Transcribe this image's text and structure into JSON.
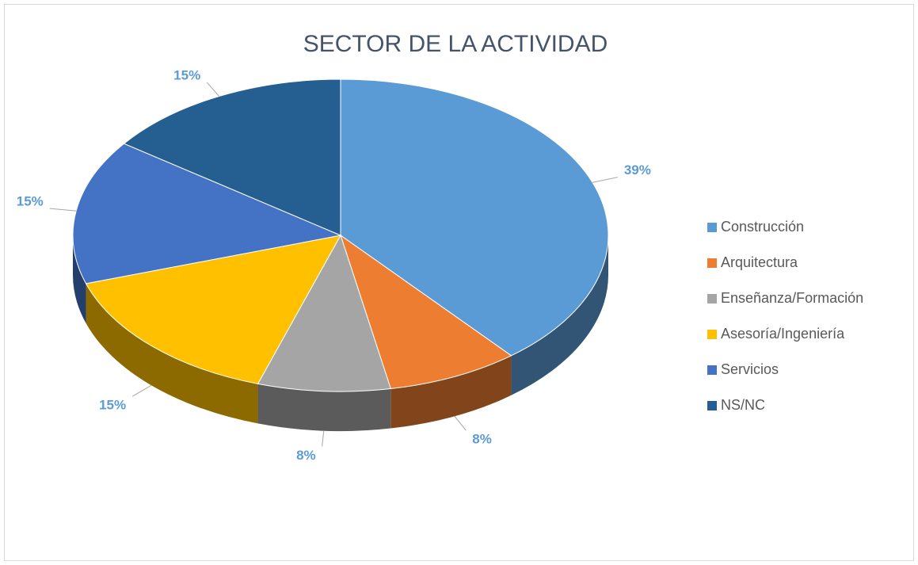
{
  "chart_data": {
    "type": "pie",
    "title": "SECTOR DE LA ACTIVIDAD",
    "is_3d": true,
    "categories": [
      "Construcción",
      "Arquitectura",
      "Enseñanza/Formación",
      "Asesoría/Ingeniería",
      "Servicios",
      "NS/NC"
    ],
    "values": [
      39,
      8,
      8,
      15,
      15,
      15
    ],
    "value_labels": [
      "39%",
      "8%",
      "8%",
      "15%",
      "15%",
      "15%"
    ],
    "colors": [
      "#5b9bd5",
      "#ed7d31",
      "#a5a5a5",
      "#ffc000",
      "#4472c4",
      "#255e91"
    ],
    "legend": "right"
  }
}
